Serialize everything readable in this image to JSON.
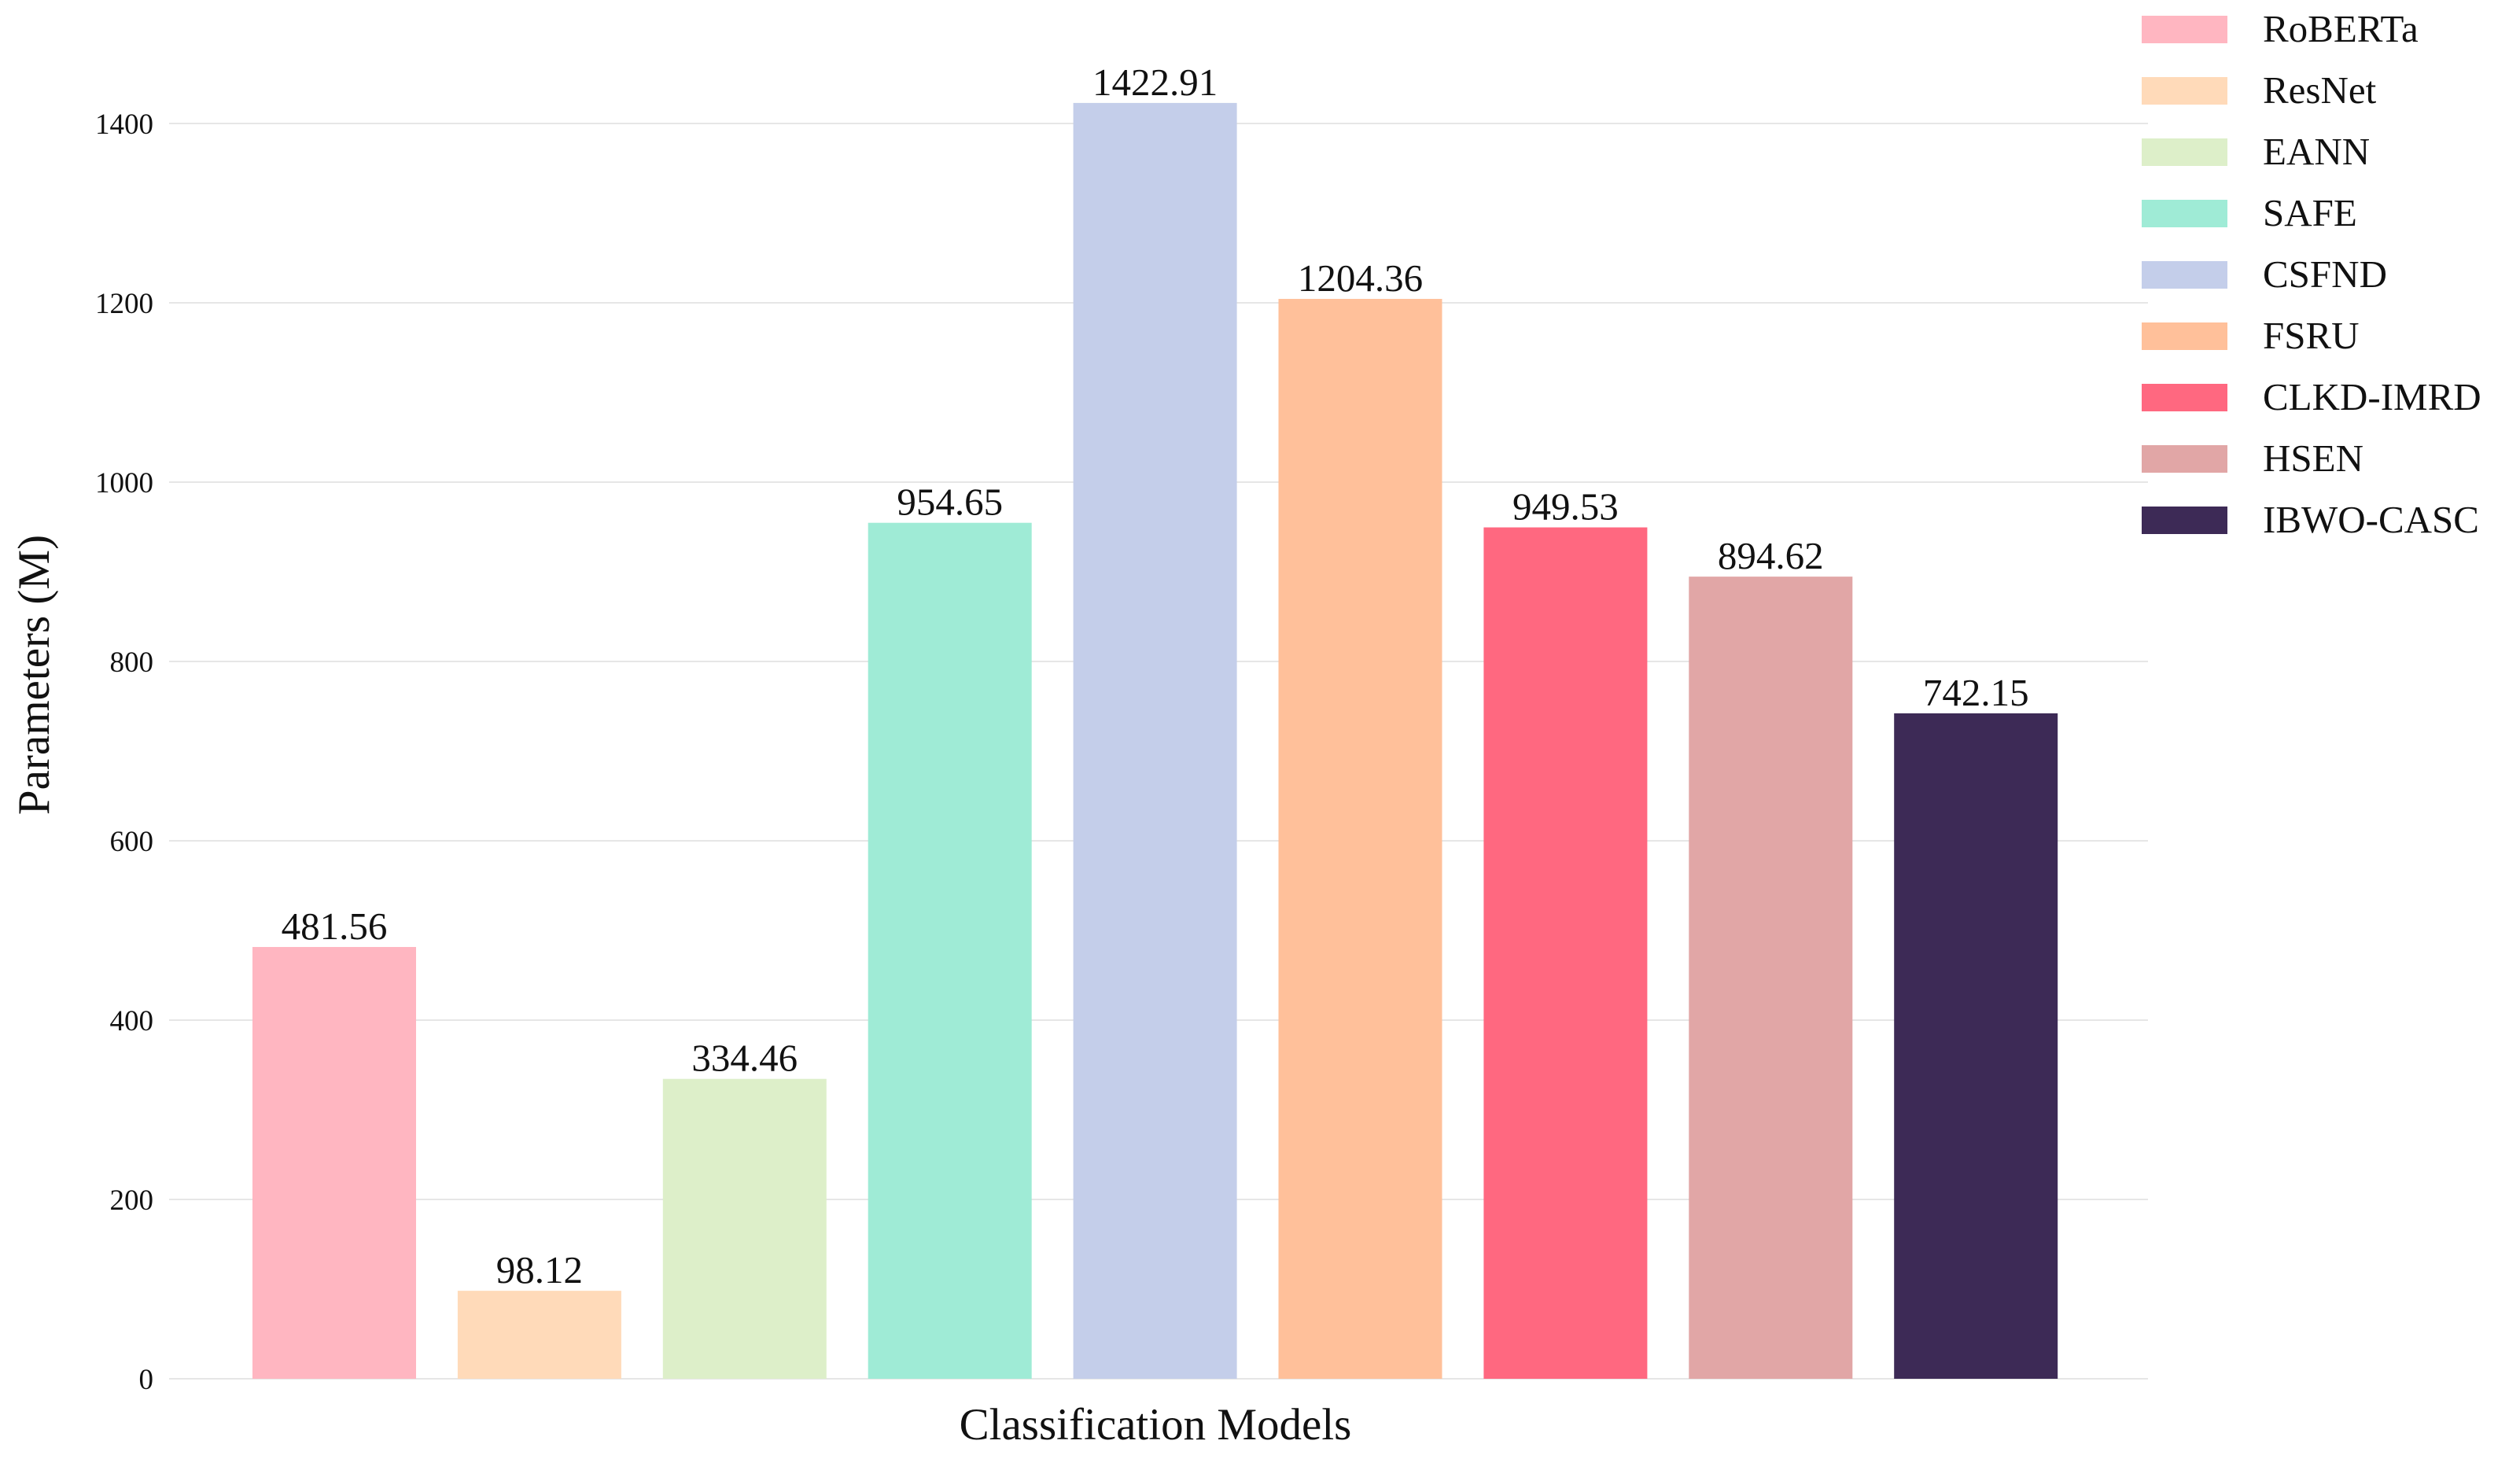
{
  "chart_data": {
    "type": "bar",
    "categories": [
      "RoBERTa",
      "ResNet",
      "EANN",
      "SAFE",
      "CSFND",
      "FSRU",
      "CLKD-IMRD",
      "HSEN",
      "IBWO-CASC"
    ],
    "values": [
      481.56,
      98.12,
      334.46,
      954.65,
      1422.91,
      1204.36,
      949.53,
      894.62,
      742.15
    ],
    "value_labels": [
      "481.56",
      "98.12",
      "334.46",
      "954.65",
      "1422.91",
      "1204.36",
      "949.53",
      "894.62",
      "742.15"
    ],
    "colors": [
      "#FFB6C1",
      "#FFDAB9",
      "#DDEFC9",
      "#9FEBD6",
      "#C4CEEA",
      "#FFC09A",
      "#FF6880",
      "#E1A6A6",
      "#3D2A56"
    ],
    "title": "",
    "xlabel": "Classification Models",
    "ylabel": "Parameters (M)",
    "ylim": [
      0,
      1400
    ],
    "yticks": [
      "0",
      "200",
      "400",
      "600",
      "800",
      "1000",
      "1200",
      "1400"
    ],
    "grid": true,
    "legend_position": "top-right"
  }
}
